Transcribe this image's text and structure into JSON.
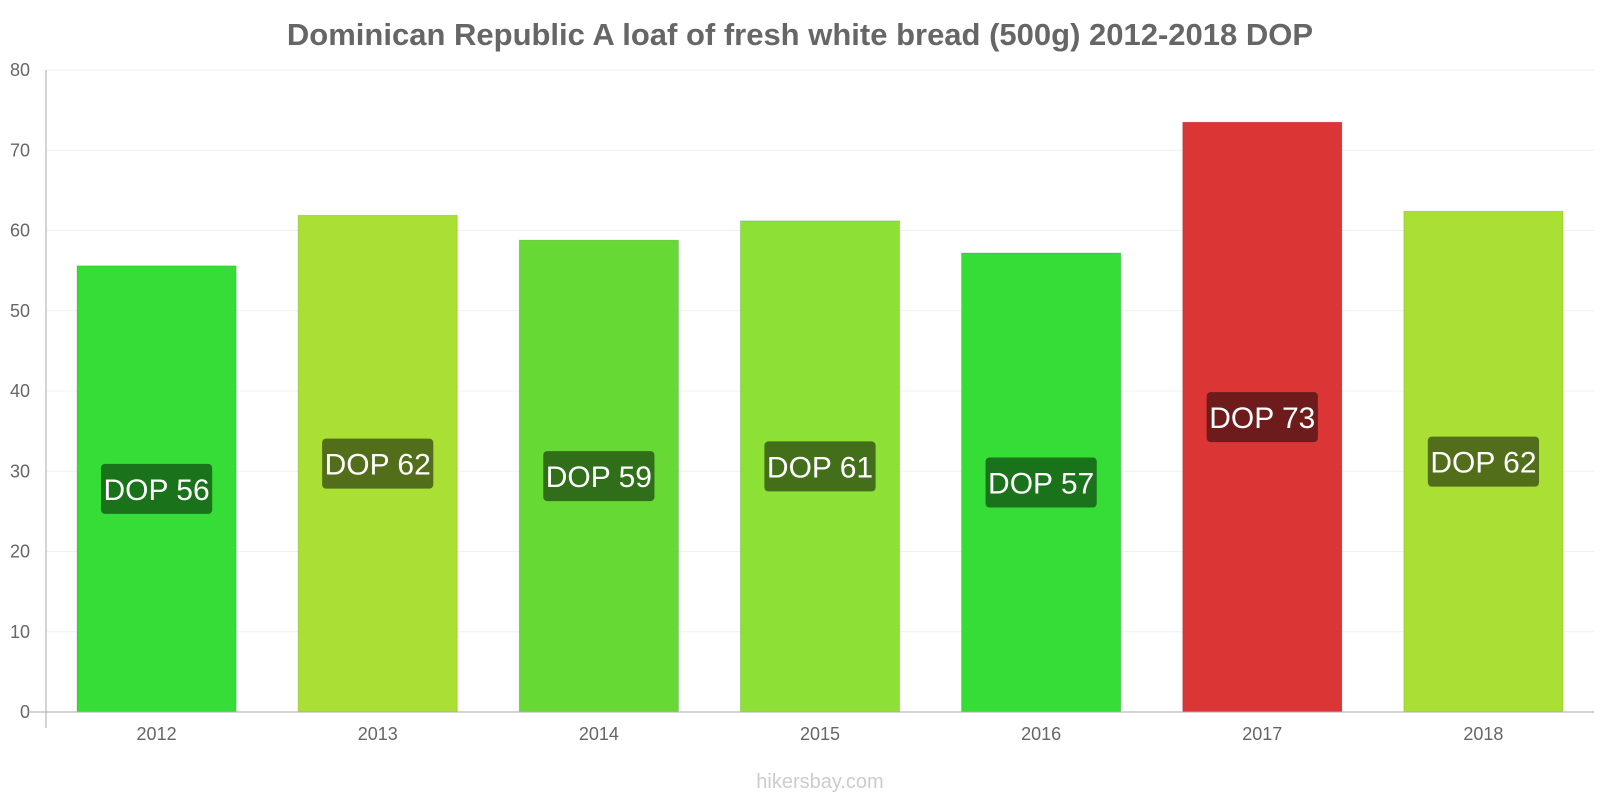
{
  "chart_data": {
    "type": "bar",
    "title": "Dominican Republic A loaf of fresh white bread (500g) 2012-2018 DOP",
    "categories": [
      "2012",
      "2013",
      "2014",
      "2015",
      "2016",
      "2017",
      "2018"
    ],
    "values": [
      55.6,
      61.9,
      58.8,
      61.2,
      57.2,
      73.5,
      62.4
    ],
    "value_labels": [
      "DOP 56",
      "DOP 62",
      "DOP 59",
      "DOP 61",
      "DOP 57",
      "DOP 73",
      "DOP 62"
    ],
    "bar_colors": [
      "#37dd37",
      "#aadf34",
      "#67d935",
      "#8de035",
      "#37dd37",
      "#dc3535",
      "#aadf34"
    ],
    "label_colors": [
      "#1a721a",
      "#536e1a",
      "#316e1a",
      "#436e1a",
      "#1a721a",
      "#6e1b1b",
      "#536e1a"
    ],
    "xlabel": "",
    "ylabel": "",
    "ylim": [
      0,
      80
    ],
    "yticks": [
      0,
      10,
      20,
      30,
      40,
      50,
      60,
      70,
      80
    ],
    "grid": true
  },
  "source": "hikersbay.com"
}
